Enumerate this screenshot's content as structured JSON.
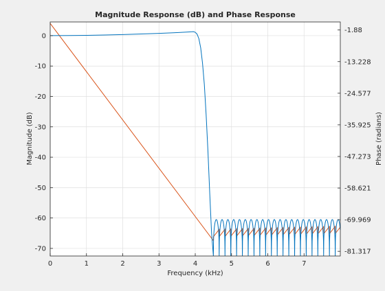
{
  "chart_data": {
    "type": "line",
    "title": "Magnitude Response (dB) and Phase Response",
    "xlabel": "Frequency (kHz)",
    "ylabel_left": "Magnitude (dB)",
    "ylabel_right": "Phase (radians)",
    "xlim": [
      0,
      8
    ],
    "ylim_left": [
      -72.5,
      4.5
    ],
    "ylim_right": [
      -83.0,
      1.0
    ],
    "x_ticks": [
      0,
      1,
      2,
      3,
      4,
      5,
      6,
      7
    ],
    "x_tick_labels": [
      "0",
      "1",
      "2",
      "3",
      "4",
      "5",
      "6",
      "7"
    ],
    "y_left_ticks": [
      0,
      -10,
      -20,
      -30,
      -40,
      -50,
      -60,
      -70
    ],
    "y_left_tick_labels": [
      "0",
      "-10",
      "-20",
      "-30",
      "-40",
      "-50",
      "-60",
      "-70"
    ],
    "y_right_ticks": [
      -1.88,
      -13.228,
      -24.577,
      -35.925,
      -47.273,
      -58.621,
      -69.969,
      -81.317
    ],
    "y_right_tick_labels": [
      "-1.88",
      "-13.228",
      "-24.577",
      "-35.925",
      "-47.273",
      "-58.621",
      "-69.969",
      "-81.317"
    ],
    "grid": true,
    "series": [
      {
        "role": "magnitude",
        "axis": "left",
        "color": "#0072bd",
        "passband": {
          "x": [
            0,
            0.5,
            1,
            1.5,
            2,
            2.5,
            3,
            3.5,
            3.8,
            3.95,
            4.0
          ],
          "y": [
            0,
            0.05,
            0.1,
            0.2,
            0.35,
            0.55,
            0.75,
            1.0,
            1.2,
            1.3,
            1.1
          ]
        },
        "transition": {
          "x": [
            4.0,
            4.05,
            4.1,
            4.15,
            4.2,
            4.25,
            4.3,
            4.35,
            4.4,
            4.45,
            4.5
          ],
          "y": [
            1.1,
            0.5,
            -1,
            -4,
            -9,
            -16,
            -26,
            -38,
            -52,
            -65,
            -72.5
          ]
        },
        "stopband": {
          "x_start": 4.5,
          "x_end": 8.0,
          "ripple_period": 0.16,
          "peak": -60.5,
          "floor": -72.5
        }
      },
      {
        "role": "phase",
        "axis": "right",
        "color": "#d95319",
        "linear": {
          "x": [
            0,
            4.5
          ],
          "y": [
            0.5,
            -77.5
          ]
        },
        "stopband": {
          "x_start": 4.5,
          "x_end": 8.0,
          "y_start": -74.8,
          "y_end": -73.6,
          "wrap_period": 0.16,
          "wrap_amplitude": 2.6
        }
      }
    ]
  }
}
